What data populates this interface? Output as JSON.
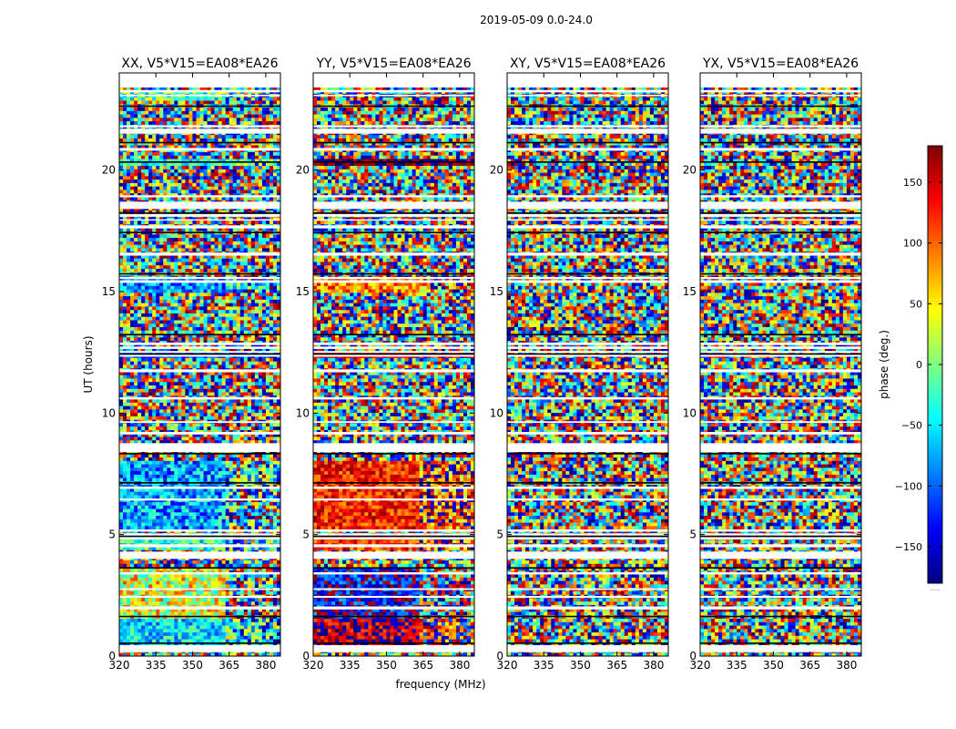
{
  "chart_data": {
    "type": "heatmap",
    "suptitle": "2019-05-09 0.0-24.0",
    "xlabel": "frequency (MHz)",
    "ylabel": "UT (hours)",
    "xlim": [
      320,
      386
    ],
    "ylim": [
      0,
      24
    ],
    "xticks": [
      320,
      335,
      350,
      365,
      380
    ],
    "yticks": [
      0,
      5,
      10,
      15,
      20
    ],
    "panels": [
      {
        "title": "XX, V5*V15=EA08*EA26",
        "bands": [
          {
            "t0": 0.4,
            "t1": 1.5,
            "phase": -55,
            "spread": 55
          },
          {
            "t0": 1.6,
            "t1": 3.6,
            "phase": 35,
            "spread": 80
          },
          {
            "t0": 4.4,
            "t1": 5.0,
            "phase": -30,
            "spread": 60
          },
          {
            "t0": 5.2,
            "t1": 8.0,
            "phase": -75,
            "spread": 65
          },
          {
            "t0": 12.3,
            "t1": 12.6,
            "phase": -110,
            "spread": 30
          },
          {
            "t0": 14.9,
            "t1": 15.6,
            "phase": -80,
            "spread": 55
          },
          {
            "t0": 20.2,
            "t1": 20.5,
            "phase": -40,
            "spread": 45
          },
          {
            "t0": 22.9,
            "t1": 23.3,
            "phase": -20,
            "spread": 70
          }
        ]
      },
      {
        "title": "YY, V5*V15=EA08*EA26",
        "bands": [
          {
            "t0": 0.4,
            "t1": 1.5,
            "phase": 160,
            "spread": 55
          },
          {
            "t0": 1.6,
            "t1": 3.6,
            "phase": -140,
            "spread": 70
          },
          {
            "t0": 4.4,
            "t1": 5.0,
            "phase": 120,
            "spread": 45
          },
          {
            "t0": 5.2,
            "t1": 8.0,
            "phase": 125,
            "spread": 50
          },
          {
            "t0": 12.3,
            "t1": 12.6,
            "phase": 150,
            "spread": 25
          },
          {
            "t0": 14.9,
            "t1": 15.6,
            "phase": 90,
            "spread": 60
          },
          {
            "t0": 20.2,
            "t1": 20.5,
            "phase": 175,
            "spread": 20
          }
        ]
      },
      {
        "title": "XY, V5*V15=EA08*EA26",
        "bands": []
      },
      {
        "title": "YX, V5*V15=EA08*EA26",
        "bands": []
      }
    ],
    "colorbar": {
      "label": "phase (deg.)",
      "range": [
        -180,
        180
      ],
      "ticks": [
        150,
        100,
        50,
        0,
        -50,
        -100,
        -150
      ],
      "tick_labels": [
        "150",
        "100",
        "50",
        "0",
        "−50",
        "−100",
        "−150"
      ],
      "colormap": "jet",
      "under_marker": "....."
    }
  }
}
